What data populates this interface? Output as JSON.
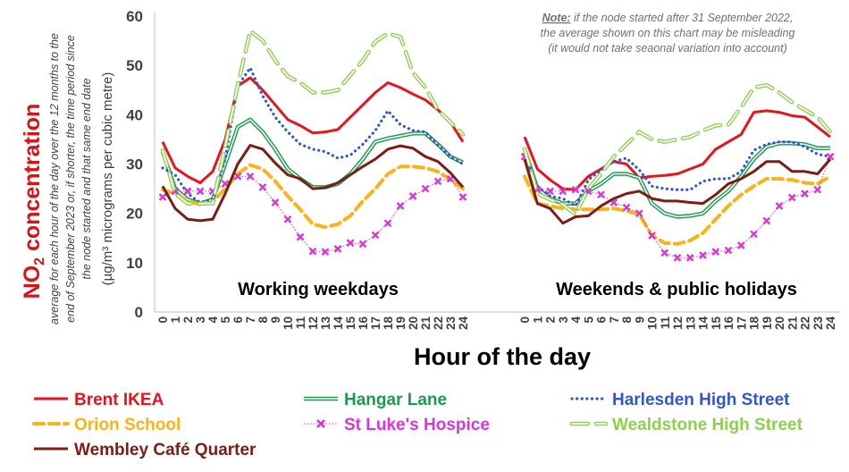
{
  "chart_data": {
    "type": "line",
    "title": "NO2 concentration",
    "ylabel_main": "NO",
    "ylabel_sub": "2",
    "ylabel_main_suffix": " concentration",
    "ylabel_note_lines": [
      "average for each hour of the day over the 12 months to the",
      "end of September 2023 or, if shorter, the time period since",
      "the node started and that same end date"
    ],
    "ylabel_units": "(µg/m³ micrograms per cubic metre)",
    "xlabel": "Hour of the day",
    "ylim": [
      0,
      60
    ],
    "yticks": [
      "0",
      "10",
      "20",
      "30",
      "40",
      "50",
      "60"
    ],
    "grid": false,
    "note": {
      "prefix": "Note:",
      "line1": "  if the node started after 31 September 2022,",
      "line2": "the average shown on this chart may be misleading",
      "line3": "(it would not take seaonal variation into account)"
    },
    "panels": [
      {
        "label": "Working weekdays",
        "x": [
          "0",
          "1",
          "2",
          "3",
          "4",
          "5",
          "6",
          "7",
          "8",
          "9",
          "10",
          "11",
          "12",
          "13",
          "14",
          "15",
          "16",
          "17",
          "18",
          "19",
          "20",
          "21",
          "22",
          "23",
          "24"
        ]
      },
      {
        "label": "Weekends & public holidays",
        "x": [
          "0",
          "1",
          "2",
          "3",
          "4",
          "5",
          "6",
          "7",
          "8",
          "9",
          "10",
          "11",
          "12",
          "13",
          "14",
          "15",
          "16",
          "17",
          "18",
          "19",
          "20",
          "21",
          "22",
          "23",
          "24"
        ]
      }
    ],
    "series": [
      {
        "name": "Brent IKEA",
        "color": "#e8141b",
        "style": "solid",
        "weekday": [
          34.5,
          29.2,
          27.5,
          26.2,
          28.5,
          35,
          45.8,
          47.5,
          45,
          42,
          39,
          37.8,
          36.3,
          36.5,
          37,
          39.5,
          42,
          44.5,
          46.5,
          45.5,
          44.2,
          43,
          41,
          38.5,
          34.5
        ],
        "weekend": [
          35.5,
          29,
          26.8,
          25,
          24.8,
          27.5,
          29,
          30.5,
          30,
          27.2,
          27.5,
          27.7,
          28,
          29,
          30,
          33,
          34.5,
          36,
          40.5,
          40.8,
          40.5,
          39.8,
          39.5,
          37.5,
          35.5
        ]
      },
      {
        "name": "Hangar Lane",
        "color": "#1a9c4e",
        "style": "double",
        "weekday": [
          32.5,
          25,
          22.8,
          22,
          22.8,
          30,
          37.5,
          39,
          36.5,
          33,
          29,
          27,
          25.3,
          25.3,
          26,
          28,
          31,
          34.5,
          35.2,
          35.7,
          36.2,
          36.2,
          34,
          31.5,
          30.3
        ],
        "weekend": [
          33,
          25,
          23,
          22,
          22,
          24.5,
          26,
          28,
          28,
          27.2,
          22,
          20,
          19.3,
          19.5,
          20,
          22.5,
          24.5,
          27.5,
          31,
          33.5,
          34.2,
          34.2,
          34,
          33.2,
          33.2
        ]
      },
      {
        "name": "Harlesden High Street",
        "color": "#3056d6",
        "style": "dotted",
        "weekday": [
          29.2,
          27.8,
          24,
          22.2,
          22.8,
          31,
          45.8,
          49.5,
          43.8,
          39.5,
          36.5,
          34,
          33,
          32.5,
          31.2,
          31.8,
          34,
          36.8,
          40.8,
          38,
          36.8,
          36.5,
          33.8,
          31.5,
          30
        ],
        "weekend": [
          32,
          25.5,
          23.5,
          23,
          21.5,
          26.8,
          28.8,
          30.5,
          31.2,
          28.8,
          25.5,
          25,
          24.8,
          24.8,
          26.5,
          27,
          27,
          28.5,
          32.8,
          34,
          34.5,
          34.5,
          33.5,
          32,
          31.5
        ]
      },
      {
        "name": "Orion School",
        "color": "#fbb317",
        "style": "dashed",
        "weekday": [
          24.8,
          24,
          22.5,
          21.8,
          22.3,
          25,
          28,
          29.8,
          29,
          26.5,
          23.5,
          20.8,
          17.8,
          17.2,
          17.8,
          19.5,
          22.5,
          25,
          28,
          29.5,
          29.5,
          29.2,
          28.5,
          26.8,
          25
        ],
        "weekend": [
          27.5,
          22,
          21.5,
          21,
          20.8,
          20.8,
          20.8,
          21,
          20.5,
          19.8,
          15.5,
          14,
          13.8,
          14.5,
          16,
          18.8,
          21.5,
          23.8,
          25.5,
          27,
          27,
          26.8,
          26.2,
          26,
          27.5
        ]
      },
      {
        "name": "St Luke's Hospice",
        "color": "#d935d9",
        "style": "xmarker",
        "weekday": [
          23.3,
          24.5,
          24.5,
          24.5,
          24.5,
          26,
          27.5,
          27.5,
          25.3,
          22.2,
          18.8,
          15.2,
          12.3,
          12.2,
          12.8,
          14,
          13.8,
          15.6,
          18,
          21.5,
          23.5,
          25,
          26.5,
          27,
          23.3
        ],
        "weekend": [
          31.5,
          24.8,
          24.5,
          24.5,
          24.8,
          24.5,
          23.8,
          22.2,
          21.2,
          20,
          15.5,
          12,
          11,
          11,
          11.5,
          12.2,
          12.5,
          13.5,
          15.8,
          18.5,
          21.5,
          23.2,
          24,
          24.8,
          31.5
        ]
      },
      {
        "name": "Wealdstone High Street",
        "color": "#8fcf4f",
        "style": "hollowdash",
        "weekday": [
          32.8,
          24,
          22,
          22,
          22,
          33.5,
          46,
          57,
          55,
          51,
          47.8,
          46.5,
          44.5,
          44.5,
          45,
          48,
          51,
          54.8,
          56.5,
          55.8,
          48.5,
          45.5,
          41,
          38.5,
          36
        ],
        "weekend": [
          33,
          24,
          22.8,
          21.8,
          19.8,
          25,
          28,
          31.5,
          34,
          36.5,
          35,
          34.5,
          35,
          35.5,
          36.8,
          37.8,
          38,
          41.5,
          45.5,
          46,
          44.5,
          42.5,
          41,
          39.5,
          36.5
        ]
      },
      {
        "name": "Wembley Café Quarter",
        "color": "#7e1b12",
        "style": "solid",
        "weekday": [
          25.5,
          21,
          18.8,
          18.5,
          18.8,
          24,
          30,
          33.8,
          33,
          30.2,
          27.8,
          27,
          25,
          25.2,
          26.2,
          27.8,
          29.5,
          31,
          33,
          33.7,
          33.2,
          31.5,
          30.5,
          28.2,
          25.3
        ],
        "weekend": [
          31,
          22,
          21,
          18,
          19.3,
          19.5,
          21.5,
          23,
          24,
          24.5,
          23,
          22.5,
          22.5,
          22.2,
          22,
          23.8,
          26,
          27,
          28.5,
          30.5,
          30.5,
          28.5,
          28.5,
          28,
          31
        ]
      }
    ]
  }
}
